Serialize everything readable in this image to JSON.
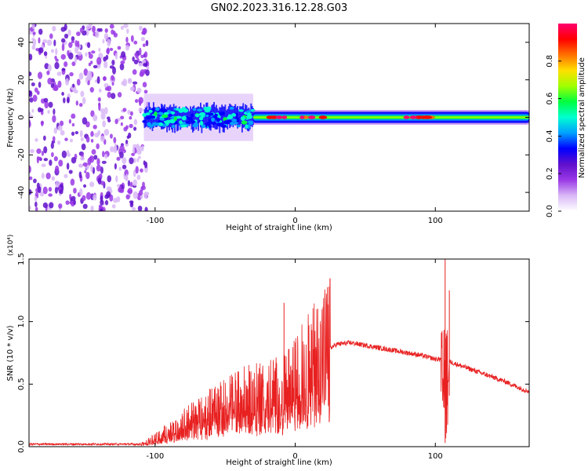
{
  "title": "GN02.2023.316.12.28.G03",
  "colors": {
    "snr_line": "#e82020",
    "colormap": [
      "#ffffff",
      "#d9b8f7",
      "#9a38e6",
      "#6010cc",
      "#0000ff",
      "#00a0ff",
      "#00ffd0",
      "#00ff40",
      "#a0ff00",
      "#ffe000",
      "#ff7000",
      "#ff0000",
      "#ff0070"
    ]
  },
  "chart_data": [
    {
      "type": "heatmap",
      "xlabel": "Height of straight line (km)",
      "ylabel": "Frequency (Hz)",
      "xlim": [
        -190,
        167
      ],
      "ylim": [
        -50,
        50
      ],
      "xticks": [
        -100,
        0,
        100
      ],
      "xtick_labels": [
        "-100",
        "0",
        "100"
      ],
      "yticks": [
        -40,
        -20,
        0,
        20,
        40
      ],
      "ytick_labels": [
        "-40",
        "-20",
        "0",
        "20",
        "40"
      ],
      "grid": false,
      "colorbar": {
        "label": "Normalized spectral amplitude",
        "range": [
          0,
          1
        ],
        "ticks": [
          0.0,
          0.2,
          0.4,
          0.6,
          0.8
        ],
        "tick_labels": [
          "0.0",
          "0.2",
          "0.4",
          "0.6",
          "0.8"
        ]
      },
      "features": [
        {
          "kind": "scattered noise",
          "x_range": [
            -190,
            -105
          ],
          "y_range": [
            -50,
            50
          ],
          "amplitude": 0.05
        },
        {
          "kind": "noisy band",
          "x_range": [
            -108,
            -30
          ],
          "center": 0,
          "width": 14,
          "amplitude": 0.3
        },
        {
          "kind": "tone",
          "x_range": [
            -30,
            167
          ],
          "center": 0,
          "width": 6,
          "amplitude": 0.45
        },
        {
          "kind": "peak",
          "x_range": [
            -20,
            20
          ],
          "center": 0,
          "amplitude": 0.95
        },
        {
          "kind": "peak",
          "x_range": [
            78,
            98
          ],
          "center": 0,
          "amplitude": 0.95
        }
      ]
    },
    {
      "type": "line",
      "xlabel": "Height of straight line (km)",
      "ylabel": "SNR (10 * v/v)",
      "y_multiplier": "(x10⁴)",
      "xlim": [
        -190,
        167
      ],
      "ylim": [
        0,
        1.5
      ],
      "xticks": [
        -100,
        0,
        100
      ],
      "xtick_labels": [
        "-100",
        "0",
        "100"
      ],
      "yticks": [
        0.0,
        0.5,
        1.0,
        1.5
      ],
      "ytick_labels": [
        "0.0",
        "0.5",
        "1.0",
        "1.5"
      ],
      "grid": false,
      "series": [
        {
          "x": [
            -190,
            -150,
            -110,
            -100,
            -90,
            -80,
            -70,
            -60,
            -50,
            -40,
            -30,
            -20,
            -15,
            -10,
            -5,
            0,
            5,
            10,
            15,
            20,
            25,
            30,
            40,
            50,
            60,
            70,
            80,
            90,
            100,
            105,
            107,
            110,
            120,
            130,
            140,
            150,
            160,
            167
          ],
          "y": [
            0.02,
            0.02,
            0.02,
            0.06,
            0.12,
            0.18,
            0.22,
            0.28,
            0.32,
            0.36,
            0.38,
            0.4,
            0.42,
            0.4,
            0.45,
            0.5,
            0.58,
            0.64,
            0.7,
            0.75,
            0.79,
            0.82,
            0.83,
            0.81,
            0.79,
            0.77,
            0.75,
            0.73,
            0.7,
            0.7,
            0.05,
            0.68,
            0.64,
            0.6,
            0.56,
            0.52,
            0.47,
            0.44
          ]
        }
      ],
      "spikes": [
        {
          "x": -8,
          "y": 1.15
        },
        {
          "x": 18,
          "y": 0.98
        },
        {
          "x": 107,
          "y": 1.5
        },
        {
          "x": 110,
          "y": 1.25
        }
      ]
    }
  ]
}
